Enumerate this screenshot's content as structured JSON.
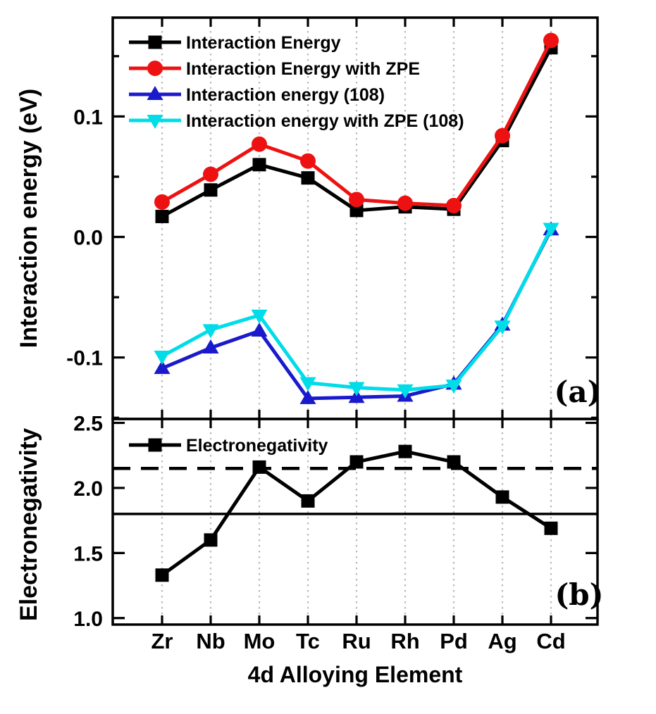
{
  "figure": {
    "xlabel": "4d Alloying Element",
    "background": "#ffffff",
    "frame_color": "#000000",
    "gridline_color": "#bbbbbb"
  },
  "chart_data": [
    {
      "panel": "a",
      "type": "line",
      "panel_label": "(a)",
      "ylabel": "Interaction energy (eV)",
      "categories": [
        "Zr",
        "Nb",
        "Mo",
        "Tc",
        "Ru",
        "Rh",
        "Pd",
        "Ag",
        "Cd"
      ],
      "ylim": [
        -0.151,
        0.182
      ],
      "yticks_major": [
        0.1,
        0.0,
        -0.1
      ],
      "ytick_labels": [
        "0.1",
        "0.0",
        "-0.1"
      ],
      "yticks_minor": [
        0.15,
        0.05,
        -0.05,
        -0.15
      ],
      "grid": "vertical-dotted",
      "legend_position": "top-left-inside",
      "series": [
        {
          "name": "Interaction Energy",
          "color": "#000000",
          "marker": "square",
          "values": [
            0.017,
            0.039,
            0.06,
            0.049,
            0.022,
            0.025,
            0.023,
            0.08,
            0.157
          ]
        },
        {
          "name": "Interaction Energy with ZPE",
          "color": "#ee1111",
          "marker": "circle",
          "values": [
            0.029,
            0.052,
            0.077,
            0.063,
            0.031,
            0.028,
            0.026,
            0.084,
            0.163
          ]
        },
        {
          "name": "Interaction energy (108)",
          "color": "#1a1acc",
          "marker": "triangle-up",
          "values": [
            -0.109,
            -0.092,
            -0.078,
            -0.134,
            -0.133,
            -0.132,
            -0.122,
            -0.073,
            0.006
          ]
        },
        {
          "name": "Interaction energy with ZPE (108)",
          "color": "#00dce8",
          "marker": "triangle-down",
          "values": [
            -0.099,
            -0.077,
            -0.065,
            -0.121,
            -0.125,
            -0.127,
            -0.123,
            -0.074,
            0.007
          ]
        }
      ]
    },
    {
      "panel": "b",
      "type": "line",
      "panel_label": "(b)",
      "ylabel": "Electronegativity",
      "categories": [
        "Zr",
        "Nb",
        "Mo",
        "Tc",
        "Ru",
        "Rh",
        "Pd",
        "Ag",
        "Cd"
      ],
      "ylim": [
        0.95,
        2.53
      ],
      "yticks_major": [
        2.5,
        2.0,
        1.5,
        1.0
      ],
      "ytick_labels": [
        "2.5",
        "2.0",
        "1.5",
        "1.0"
      ],
      "yticks_minor": [],
      "grid": "vertical-dotted",
      "legend_position": "top-left-inside",
      "series": [
        {
          "name": "Electronegativity",
          "color": "#000000",
          "marker": "square",
          "values": [
            1.33,
            1.6,
            2.16,
            1.9,
            2.2,
            2.28,
            2.2,
            1.93,
            1.69
          ]
        }
      ],
      "reference_lines": [
        {
          "style": "dashed",
          "value": 2.15
        },
        {
          "style": "solid",
          "value": 1.8
        }
      ]
    }
  ]
}
